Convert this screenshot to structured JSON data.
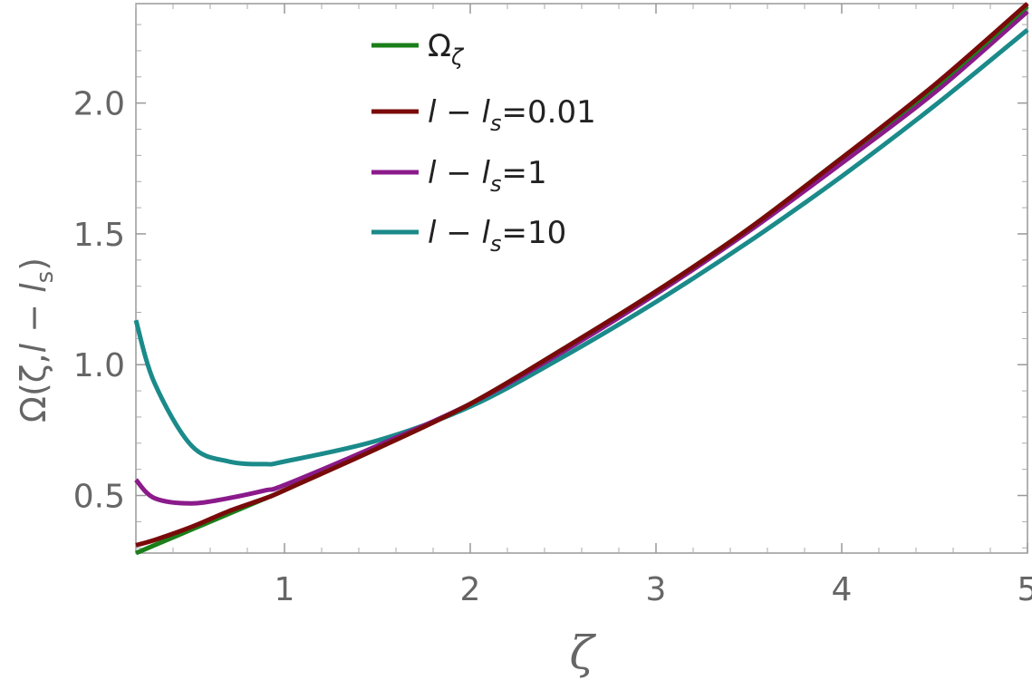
{
  "chart_data": {
    "type": "line",
    "title": "",
    "xlabel": "ζ",
    "ylabel": "Ω(ζ,l − l_s)",
    "ylabel_parts": {
      "main": "Ω(ζ,",
      "l1": "l",
      "minus": " − ",
      "l2": "l",
      "sub": "s",
      "close": ")"
    },
    "xlim": [
      0.2,
      5.0
    ],
    "ylim": [
      0.28,
      2.38
    ],
    "x_ticks": [
      1,
      2,
      3,
      4,
      5
    ],
    "x_tick_labels": [
      "1",
      "2",
      "3",
      "4",
      "5"
    ],
    "y_ticks": [
      0.5,
      1.0,
      1.5,
      2.0
    ],
    "y_tick_labels": [
      "0.5",
      "1.0",
      "1.5",
      "2.0"
    ],
    "grid": false,
    "legend_position": "top-left",
    "x": [
      0.2,
      0.3,
      0.5,
      0.7,
      0.9,
      1.0,
      1.5,
      2.0,
      2.5,
      3.0,
      3.5,
      4.0,
      4.5,
      5.0
    ],
    "series": [
      {
        "name": "Ω_ζ",
        "legend_parts": {
          "main": "Ω",
          "sub": "ζ",
          "rest": ""
        },
        "color": "#1a7f1a",
        "values": [
          0.28,
          0.31,
          0.37,
          0.43,
          0.49,
          0.52,
          0.68,
          0.85,
          1.06,
          1.28,
          1.52,
          1.79,
          2.06,
          2.37
        ]
      },
      {
        "name": "l − l_s=0.01",
        "legend_parts": {
          "main": "l − l",
          "sub": "s",
          "rest": "=0.01"
        },
        "color": "#7a0a0a",
        "values": [
          0.31,
          0.33,
          0.38,
          0.44,
          0.49,
          0.52,
          0.68,
          0.85,
          1.06,
          1.28,
          1.52,
          1.79,
          2.07,
          2.38
        ]
      },
      {
        "name": "l − l_s=1",
        "legend_parts": {
          "main": " l − l",
          "sub": "s",
          "rest": "=1"
        },
        "color": "#8b1a8b",
        "values": [
          0.56,
          0.49,
          0.47,
          0.49,
          0.52,
          0.54,
          0.69,
          0.85,
          1.05,
          1.27,
          1.51,
          1.77,
          2.04,
          2.35
        ]
      },
      {
        "name": "l − l_s=10",
        "legend_parts": {
          "main": "l − l",
          "sub": "s",
          "rest": "=10"
        },
        "color": "#1b8a8a",
        "values": [
          1.17,
          0.93,
          0.69,
          0.63,
          0.62,
          0.63,
          0.71,
          0.84,
          1.03,
          1.24,
          1.47,
          1.72,
          1.99,
          2.28
        ]
      }
    ]
  }
}
